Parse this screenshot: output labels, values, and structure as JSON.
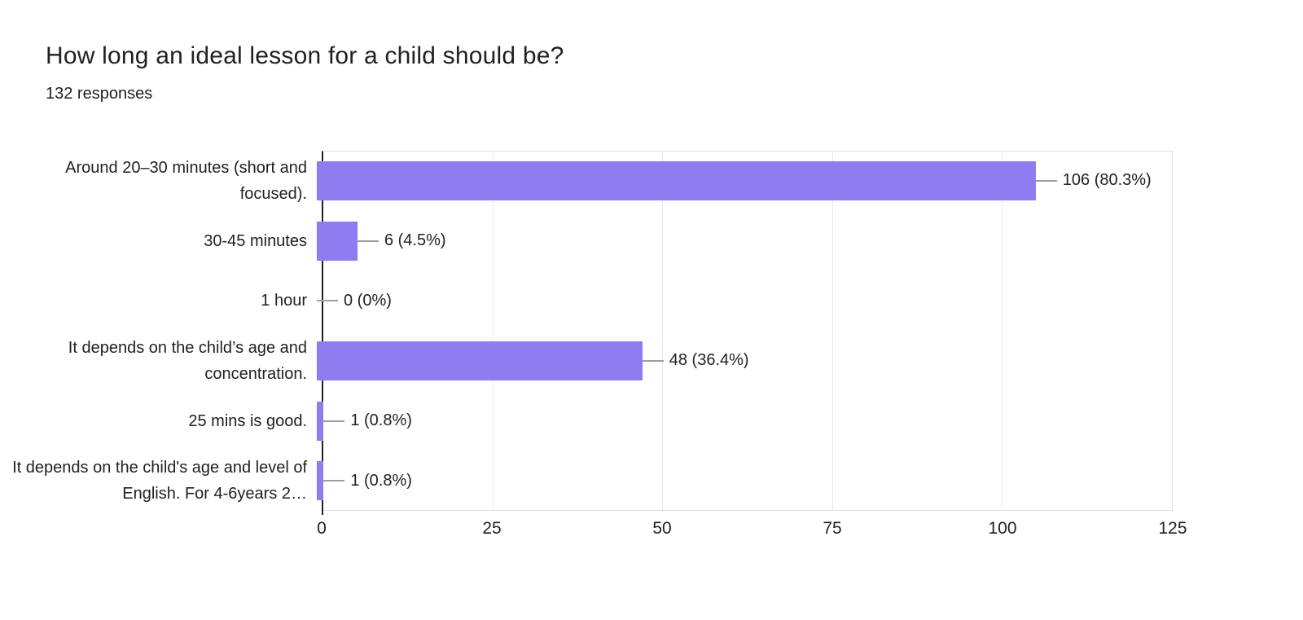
{
  "header": {
    "title": "How long an ideal lesson for a child should be?",
    "responses": "132 responses"
  },
  "chart_data": {
    "type": "bar",
    "orientation": "horizontal",
    "title": "How long an ideal lesson for a child should be?",
    "subtitle": "132 responses",
    "total_responses": 132,
    "categories": [
      "Around 20–30 minutes (short and focused).",
      "30-45 minutes",
      "1 hour",
      "It depends on the child’s age and concentration.",
      "25 mins is good.",
      "It depends on the child's age and level of English. For 4-6years 2…"
    ],
    "values": [
      106,
      6,
      0,
      48,
      1,
      1
    ],
    "value_labels": [
      "106 (80.3%)",
      "6 (4.5%)",
      "0 (0%)",
      "48 (36.4%)",
      "1 (0.8%)",
      "1 (0.8%)"
    ],
    "xlim": [
      0,
      125
    ],
    "xticks": [
      "0",
      "25",
      "50",
      "75",
      "100",
      "125"
    ],
    "grid": true,
    "legend": "none",
    "bar_color": "#8e7cf0",
    "connector_color": "#9e9e9e",
    "gridline_color": "#e8e8e8",
    "axis_line_color": "#212121"
  }
}
